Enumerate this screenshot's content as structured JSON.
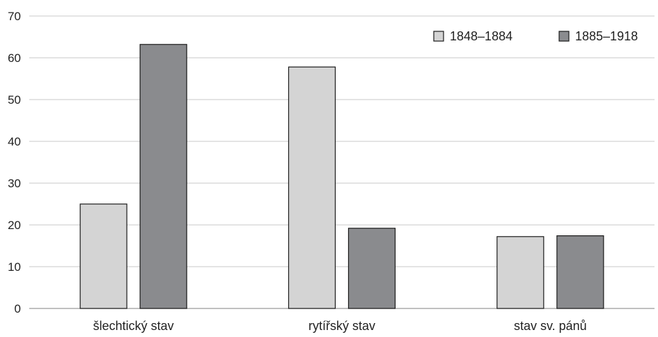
{
  "chart_data": {
    "type": "bar",
    "title": "",
    "xlabel": "",
    "ylabel": "",
    "categories": [
      "šlechtický stav",
      "rytířský stav",
      "stav sv. pánů"
    ],
    "series": [
      {
        "name": "1848–1884",
        "color": "#d4d4d4",
        "values": [
          25,
          57.8,
          17.2
        ]
      },
      {
        "name": "1885–1918",
        "color": "#8a8b8e",
        "values": [
          63.2,
          19.2,
          17.4
        ]
      }
    ],
    "ylim": [
      0,
      70
    ],
    "yticks": [
      0,
      10,
      20,
      30,
      40,
      50,
      60,
      70
    ],
    "grid": true,
    "legend_position": "top-right"
  }
}
